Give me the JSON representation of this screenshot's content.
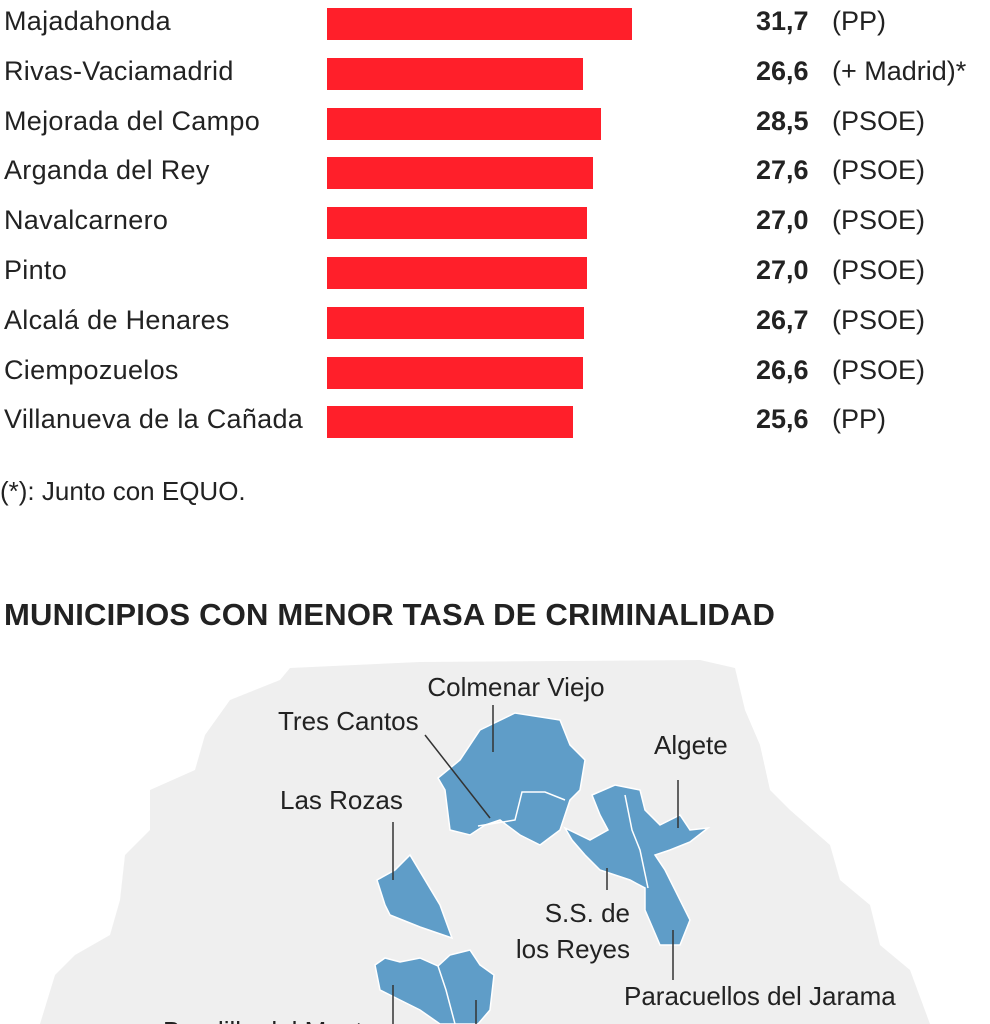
{
  "chart_data": {
    "type": "bar",
    "orientation": "horizontal",
    "categories": [
      "Majadahonda",
      "Rivas-Vaciamadrid",
      "Mejorada del Campo",
      "Arganda del Rey",
      "Navalcarnero",
      "Pinto",
      "Alcalá de Henares",
      "Ciempozuelos",
      "Villanueva de la Cañada"
    ],
    "values": [
      31.7,
      26.6,
      28.5,
      27.6,
      27.0,
      27.0,
      26.7,
      26.6,
      25.6
    ],
    "value_labels": [
      "31,7",
      "26,6",
      "28,5",
      "27,6",
      "27,0",
      "27,0",
      "26,7",
      "26,6",
      "25,6"
    ],
    "parties": [
      "(PP)",
      "(+ Madrid)*",
      "(PSOE)",
      "(PSOE)",
      "(PSOE)",
      "(PSOE)",
      "(PSOE)",
      "(PSOE)",
      "(PP)"
    ],
    "bar_color": "#ff1f2a",
    "grid": false
  },
  "footnote": "(*): Junto con EQUO.",
  "map": {
    "heading": "MUNICIPIOS CON MENOR TASA DE CRIMINALIDAD",
    "region_color": "#5f9dc8",
    "background_color": "#efefef",
    "labels": {
      "colmenar": "Colmenar Viejo",
      "tres_cantos": "Tres Cantos",
      "algete": "Algete",
      "las_rozas": "Las Rozas",
      "ss_reyes_1": "S.S. de",
      "ss_reyes_2": "los Reyes",
      "paracuellos": "Paracuellos del Jarama",
      "boadilla": "Boadilla del Monte"
    }
  }
}
